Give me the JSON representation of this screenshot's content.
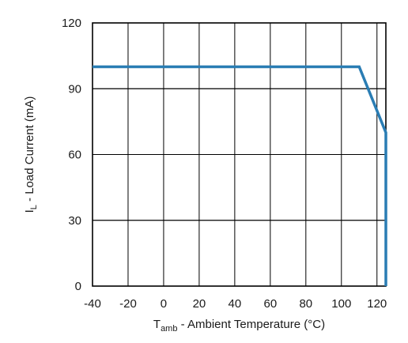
{
  "chart_data": {
    "type": "line",
    "x": [
      -40,
      110,
      125,
      125
    ],
    "series": [
      {
        "values": [
          100,
          100,
          70,
          0
        ],
        "color": "#2a7db4"
      }
    ],
    "xlim": [
      -40,
      125
    ],
    "ylim": [
      0,
      120
    ],
    "xticks": [
      -40,
      -20,
      0,
      20,
      40,
      60,
      80,
      100,
      120
    ],
    "yticks": [
      0,
      30,
      60,
      90,
      120
    ],
    "xtick_labels": [
      "-40",
      "-20",
      "0",
      "20",
      "40",
      "60",
      "80",
      "100",
      "120"
    ],
    "ytick_labels": [
      "0",
      "30",
      "60",
      "90",
      "120"
    ],
    "xlabel": {
      "main": "T",
      "sub": "amb",
      "rest": " - Ambient Temperature (°C)"
    },
    "ylabel": {
      "main": "I",
      "sub": "L",
      "rest": " - Load Current (mA)"
    },
    "grid": true
  }
}
